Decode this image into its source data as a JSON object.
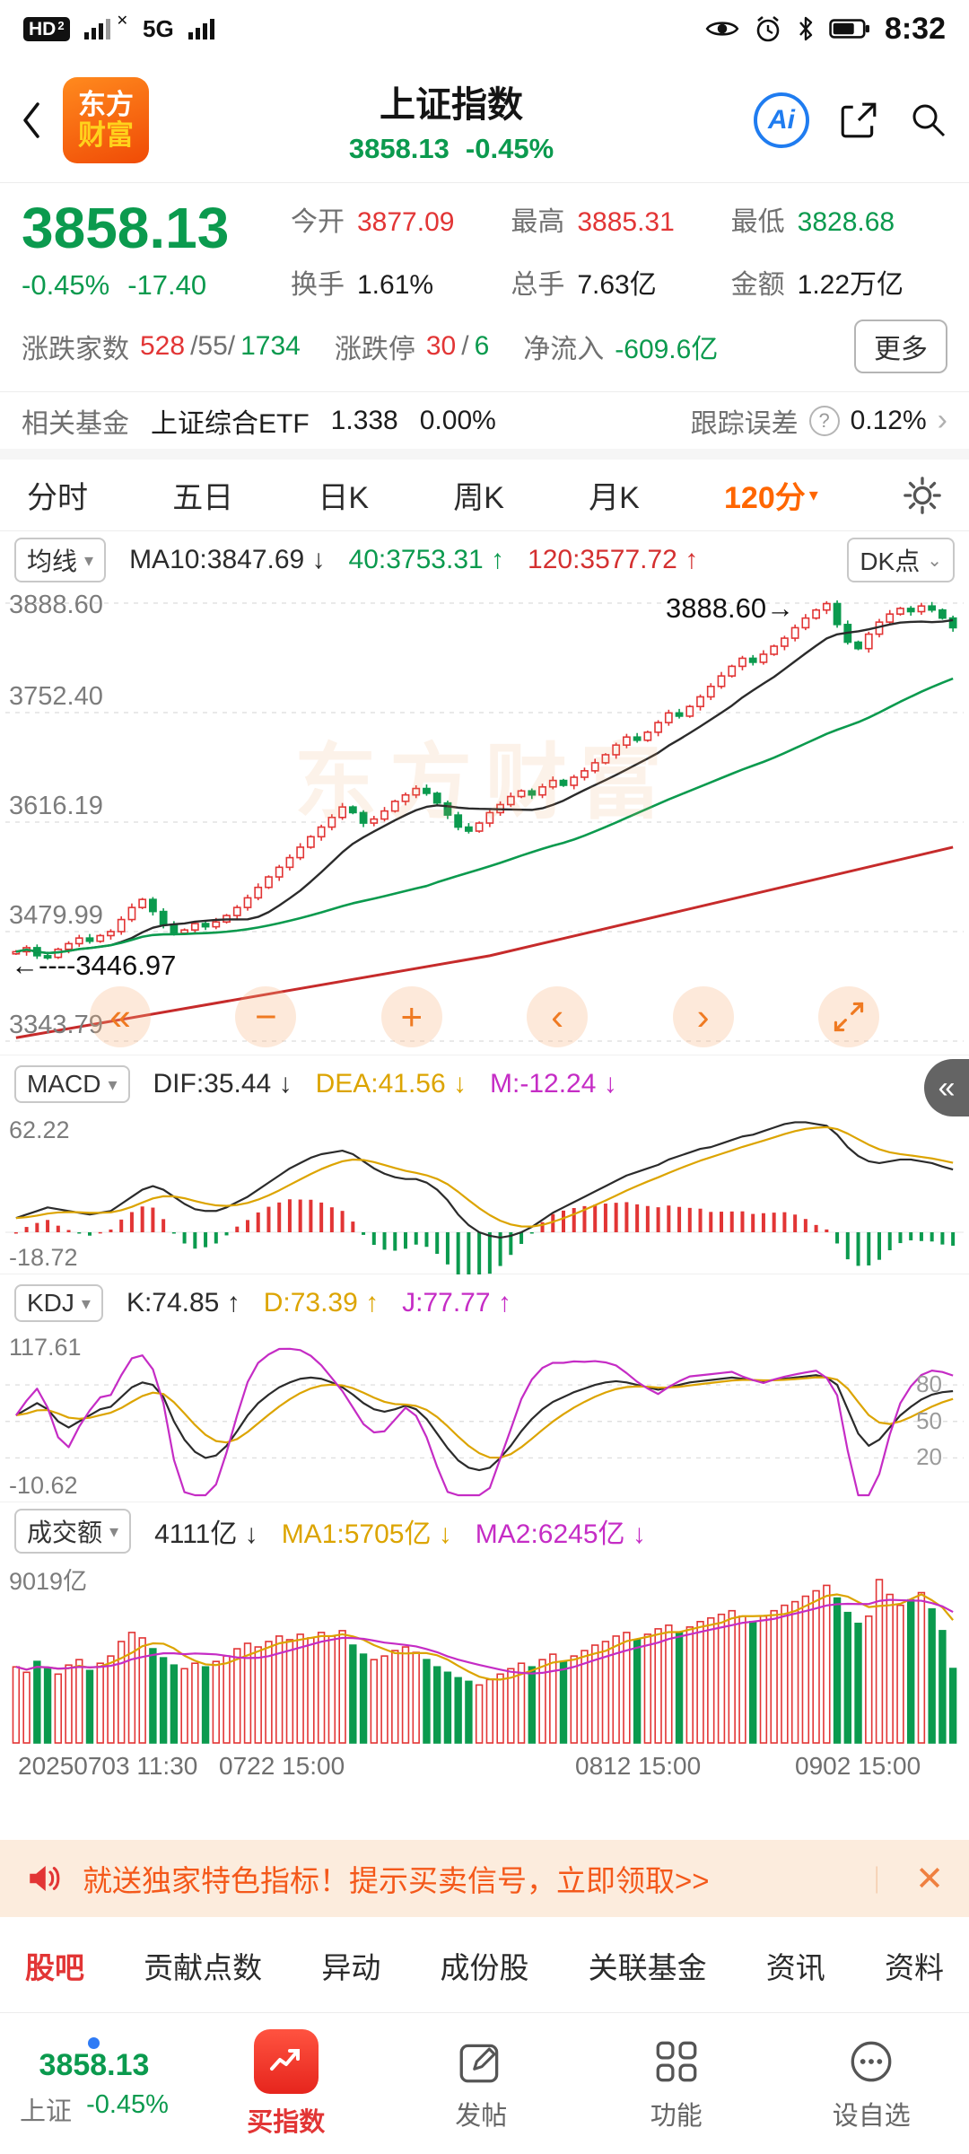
{
  "status_bar": {
    "hd": "HD",
    "hd_sub": "2",
    "x_mark": "✕",
    "network": "5G",
    "time": "8:32"
  },
  "header": {
    "title": "上证指数",
    "price": "3858.13",
    "change_pct": "-0.45%",
    "logo_line1": "东方",
    "logo_line2": "财富",
    "ai_label": "Ai"
  },
  "quote": {
    "price": "3858.13",
    "change_pct": "-0.45%",
    "change": "-17.40",
    "stats": [
      {
        "label": "今开",
        "value": "3877.09",
        "color": "red"
      },
      {
        "label": "最高",
        "value": "3885.31",
        "color": "red"
      },
      {
        "label": "最低",
        "value": "3828.68",
        "color": "green"
      },
      {
        "label": "换手",
        "value": "1.61%",
        "color": "dark"
      },
      {
        "label": "总手",
        "value": "7.63亿",
        "color": "dark"
      },
      {
        "label": "金额",
        "value": "1.22万亿",
        "color": "dark"
      }
    ],
    "row3": {
      "adv_label": "涨跌家数",
      "adv": "528",
      "mid": "/55/",
      "dec": "1734",
      "limit_label": "涨跌停",
      "limit_up": "30",
      "limit_sep": "/",
      "limit_down": "6",
      "inflow_label": "净流入",
      "inflow": "-609.6亿",
      "more_label": "更多"
    }
  },
  "fund_row": {
    "label": "相关基金",
    "name": "上证综合ETF",
    "price": "1.338",
    "pct": "0.00%",
    "err_label": "跟踪误差",
    "err_value": "0.12%"
  },
  "period_tabs": {
    "items": [
      "分时",
      "五日",
      "日K",
      "周K",
      "月K"
    ],
    "active": "120分"
  },
  "ma_bar": {
    "selector": "均线",
    "ma10": "MA10:3847.69 ↓",
    "ma40": "40:3753.31 ↑",
    "ma120": "120:3577.72 ↑",
    "dk": "DK点"
  },
  "main_chart": {
    "y_labels": [
      "3888.60",
      "3752.40",
      "3616.19",
      "3479.99",
      "3343.79"
    ],
    "max_tag": "3888.60→",
    "min_tag": "←----3446.97",
    "watermark": "东方财富"
  },
  "macd": {
    "selector": "MACD",
    "dif": "DIF:35.44 ↓",
    "dea": "DEA:41.56 ↓",
    "m": "M:-12.24 ↓",
    "y_top": "62.22",
    "y_bottom": "-18.72"
  },
  "kdj": {
    "selector": "KDJ",
    "k": "K:74.85 ↑",
    "d": "D:73.39 ↑",
    "j": "J:77.77 ↑",
    "y_top": "117.61",
    "y_bottom": "-10.62",
    "grid_labels": [
      "80",
      "50",
      "20"
    ]
  },
  "volume": {
    "selector": "成交额",
    "current": "4111亿 ↓",
    "ma1": "MA1:5705亿 ↓",
    "ma2": "MA2:6245亿 ↓",
    "y_top": "9019亿"
  },
  "x_axis": [
    "20250703 11:30",
    "0722 15:00",
    "0812 15:00",
    "0902 15:00"
  ],
  "banner": {
    "text": "就送独家特色指标！提示买卖信号，立即领取>>",
    "pipe": "｜",
    "close": "✕"
  },
  "bottom_tabs": [
    "股吧",
    "贡献点数",
    "异动",
    "成份股",
    "关联基金",
    "资讯",
    "资料"
  ],
  "bottom_nav": {
    "index_price": "3858.13",
    "index_name": "上证",
    "index_pct": "-0.45%",
    "buy_label": "买指数",
    "post_label": "发帖",
    "func_label": "功能",
    "watch_label": "设自选"
  },
  "glyphs": {
    "caret": "▾",
    "collapse": "«",
    "rewind": "«",
    "minus": "−",
    "plus": "+",
    "prev": "‹",
    "next": "›",
    "chevron_right": "›",
    "info": "?",
    "dk_mark": "⌄"
  },
  "colors": {
    "up": "#e23535",
    "down": "#0b9a4e",
    "accent": "#ff6600",
    "dea": "#dca400",
    "m": "#c52cc5"
  },
  "chart_data": {
    "type": "candlestick",
    "x_labels": [
      "20250703 11:30",
      "0722 15:00",
      "0812 15:00",
      "0902 15:00"
    ],
    "price_range": [
      3343.79,
      3888.6
    ],
    "closes": [
      3455,
      3460,
      3450,
      3448,
      3458,
      3465,
      3472,
      3468,
      3475,
      3480,
      3495,
      3510,
      3520,
      3505,
      3488,
      3478,
      3482,
      3490,
      3486,
      3492,
      3500,
      3510,
      3522,
      3535,
      3548,
      3560,
      3572,
      3585,
      3598,
      3610,
      3622,
      3635,
      3628,
      3615,
      3620,
      3630,
      3642,
      3650,
      3658,
      3652,
      3640,
      3625,
      3610,
      3605,
      3615,
      3628,
      3638,
      3648,
      3655,
      3650,
      3660,
      3668,
      3662,
      3672,
      3680,
      3690,
      3700,
      3712,
      3722,
      3718,
      3728,
      3740,
      3752,
      3748,
      3760,
      3772,
      3785,
      3798,
      3810,
      3820,
      3815,
      3825,
      3835,
      3845,
      3858,
      3870,
      3880,
      3888,
      3862,
      3840,
      3832,
      3850,
      3865,
      3875,
      3882,
      3878,
      3885,
      3880,
      3870,
      3858
    ],
    "ma120_points": [
      3348,
      3450,
      3585
    ],
    "macd_range": [
      -18.72,
      62.22
    ],
    "macd_dif": [
      8,
      10,
      12,
      14,
      13,
      12,
      11,
      10,
      11,
      12,
      16,
      20,
      24,
      26,
      24,
      20,
      16,
      13,
      12,
      12,
      14,
      17,
      20,
      24,
      28,
      32,
      36,
      39,
      42,
      44,
      45,
      46,
      44,
      40,
      36,
      33,
      31,
      30,
      30,
      28,
      24,
      18,
      10,
      4,
      0,
      -2,
      -3,
      -2,
      0,
      3,
      7,
      11,
      14,
      17,
      20,
      23,
      26,
      29,
      32,
      34,
      36,
      38,
      41,
      43,
      45,
      47,
      48,
      50,
      52,
      54,
      55,
      57,
      59,
      61,
      62,
      62,
      61,
      60,
      55,
      48,
      43,
      40,
      39,
      40,
      41,
      41,
      40,
      39,
      37,
      35.4
    ],
    "kdj_range": [
      -10.62,
      117.61
    ],
    "kdj_k": [
      55,
      60,
      65,
      60,
      50,
      45,
      50,
      55,
      60,
      62,
      70,
      78,
      82,
      80,
      70,
      50,
      35,
      25,
      20,
      22,
      30,
      42,
      55,
      65,
      72,
      78,
      82,
      85,
      86,
      85,
      82,
      78,
      72,
      65,
      60,
      58,
      60,
      63,
      60,
      52,
      40,
      28,
      18,
      12,
      10,
      12,
      20,
      30,
      42,
      52,
      60,
      66,
      70,
      74,
      77,
      80,
      82,
      83,
      82,
      80,
      78,
      76,
      78,
      80,
      82,
      83,
      84,
      85,
      86,
      85,
      84,
      83,
      84,
      85,
      86,
      87,
      88,
      86,
      80,
      60,
      40,
      30,
      35,
      45,
      55,
      62,
      68,
      72,
      74,
      74.85
    ],
    "volume_max": 9019,
    "volumes": [
      4200,
      3900,
      4500,
      4100,
      3800,
      4300,
      4600,
      4000,
      4400,
      4800,
      5600,
      6100,
      5800,
      5200,
      4700,
      4300,
      4100,
      4400,
      4200,
      4500,
      4800,
      5200,
      5500,
      5300,
      5600,
      5900,
      5700,
      6000,
      5800,
      6100,
      5900,
      6200,
      5400,
      4900,
      4600,
      4800,
      5100,
      5300,
      5000,
      4600,
      4200,
      3900,
      3600,
      3400,
      3200,
      3500,
      3800,
      4100,
      4400,
      4200,
      4600,
      4900,
      4500,
      4800,
      5100,
      5400,
      5600,
      5900,
      6100,
      5700,
      6000,
      6300,
      6500,
      6100,
      6400,
      6700,
      6900,
      7100,
      7300,
      7000,
      6700,
      7000,
      7300,
      7600,
      7800,
      8100,
      8400,
      8700,
      8000,
      7200,
      6600,
      7000,
      9019,
      8200,
      7600,
      7900,
      8300,
      7400,
      6200,
      4111
    ]
  }
}
